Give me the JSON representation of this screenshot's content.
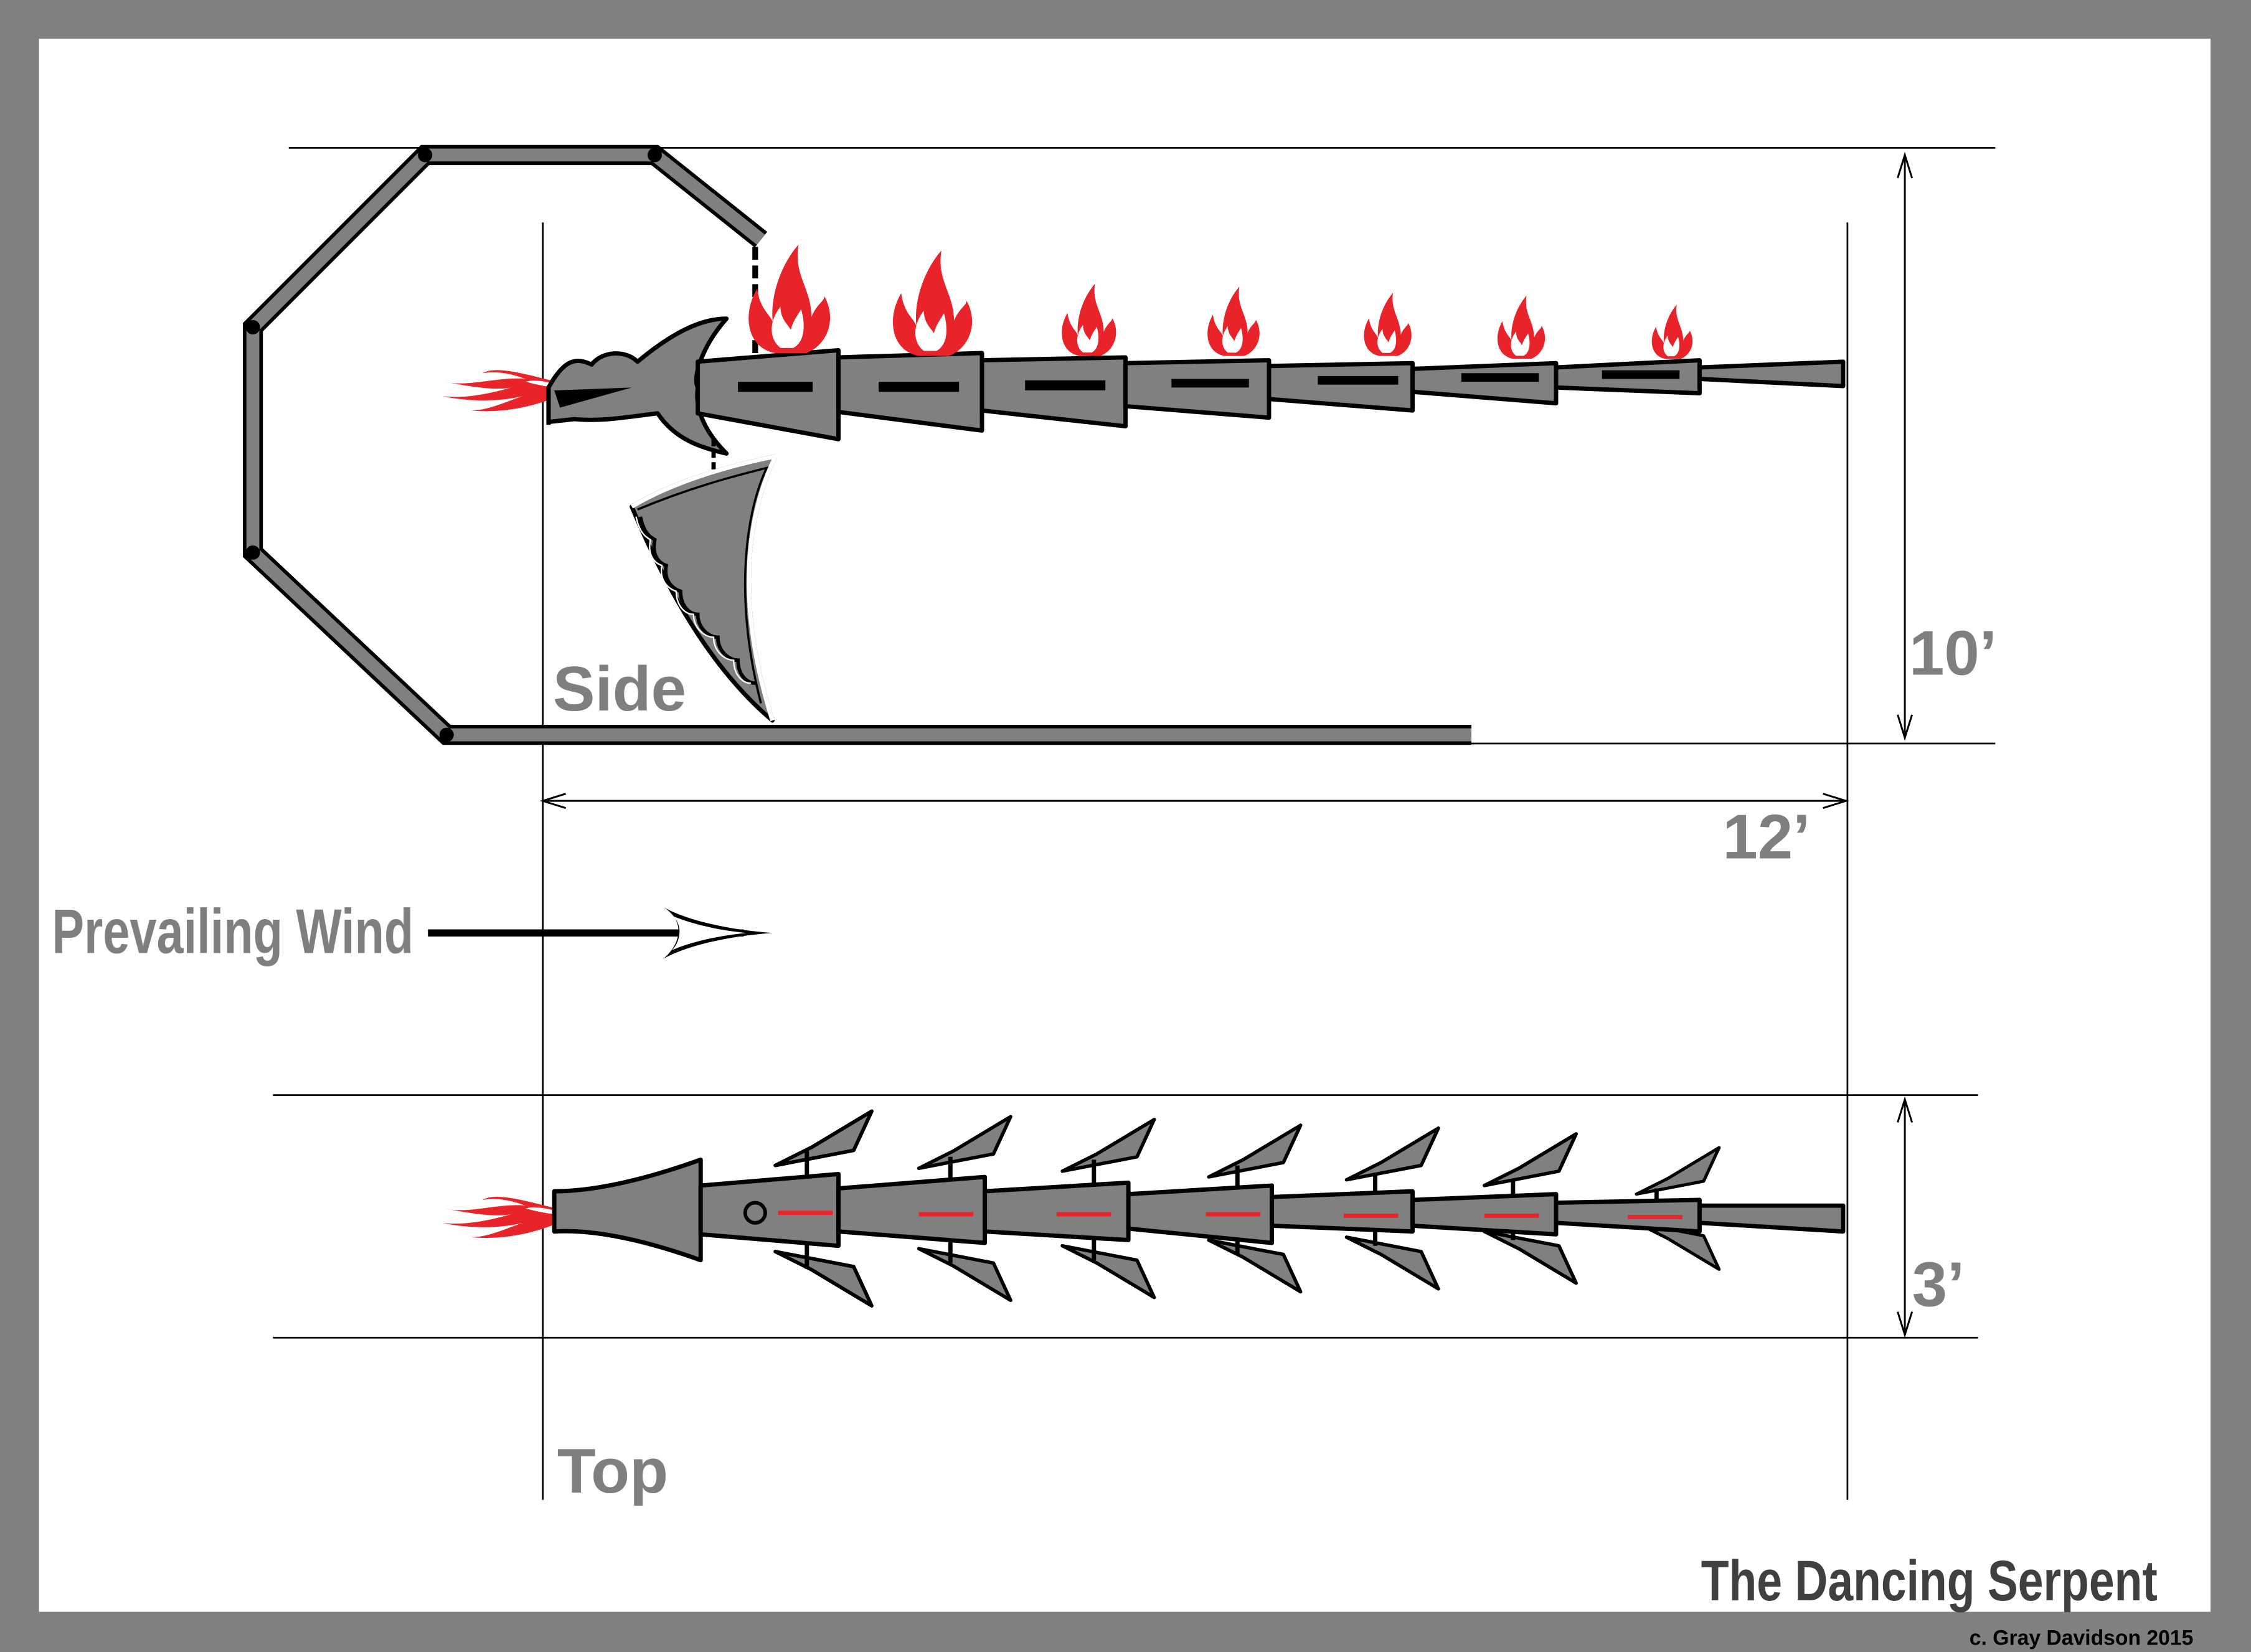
{
  "labels": {
    "side_view": "Side",
    "top_view": "Top",
    "wind": "Prevailing Wind"
  },
  "dimensions": {
    "height": "10’",
    "length": "12’",
    "width": "3’"
  },
  "title": "The Dancing Serpent",
  "credit": "c. Gray Davidson 2015",
  "colors": {
    "frame": "#808080",
    "paper": "#ffffff",
    "body": "#808080",
    "flame": "#e8232a",
    "ink": "#000000",
    "label": "#7f7f7f"
  }
}
